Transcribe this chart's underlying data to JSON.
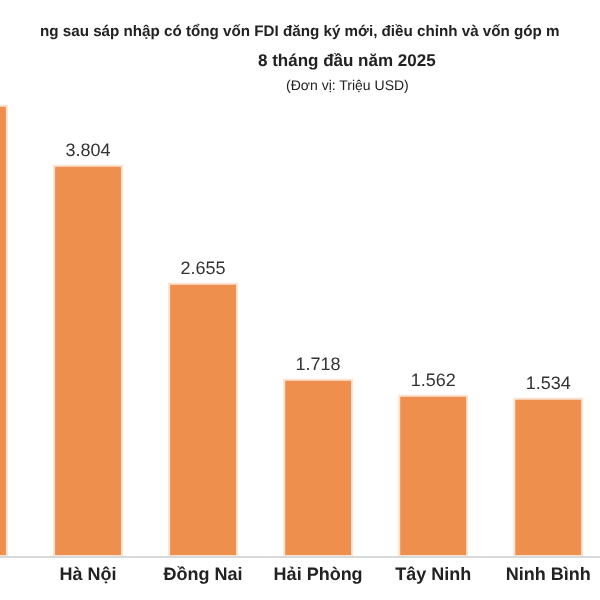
{
  "chart_data": {
    "type": "bar",
    "title": "ng sau sáp nhập có tổng vốn FDI đăng ký mới, điều chỉnh và vốn góp m",
    "subtitle": "8 tháng đầu năm 2025",
    "annotations": [
      "(Đơn vị: Triệu USD)"
    ],
    "categories": [
      null,
      "Hà Nội",
      "Đồng Nai",
      "Hải Phòng",
      "Tây Ninh",
      "Ninh Bình"
    ],
    "values": [
      4390,
      3804,
      2655,
      1718,
      1562,
      1534
    ],
    "value_labels": [
      null,
      "3.804",
      "2.655",
      "1.718",
      "1.562",
      "1.534"
    ],
    "color": "#ef8f4e",
    "ylim": [
      0,
      5420
    ],
    "tick_labels": "x",
    "legend": false
  }
}
